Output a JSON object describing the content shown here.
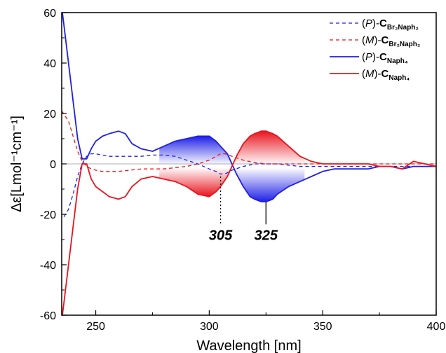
{
  "chart_data": {
    "type": "line",
    "title": "",
    "xlabel": "Wavelength [nm]",
    "ylabel": "Δε[Lmol⁻¹cm⁻¹]",
    "xlim": [
      235,
      400
    ],
    "ylim": [
      -60,
      60
    ],
    "x_ticks": [
      250,
      300,
      350,
      400
    ],
    "y_ticks": [
      -60,
      -40,
      -20,
      0,
      20,
      40,
      60
    ],
    "grid": false,
    "zero_line": true,
    "legend_position": "top-right",
    "colors": {
      "blue": "#1f1fe6",
      "red": "#e8141e"
    },
    "series": [
      {
        "name_parts": [
          "(",
          "P",
          ")-",
          "C",
          "Br2Naph2"
        ],
        "legend_text": {
          "paren_open": "(",
          "chirality": "P",
          "paren_close": ")-",
          "c": "C",
          "sub": "Br₂Naph₂"
        },
        "color": "#1f1fe6",
        "style": "dashed",
        "x": [
          236,
          238,
          240,
          242,
          244,
          246,
          248,
          250,
          253,
          256,
          260,
          265,
          270,
          275,
          280,
          285,
          290,
          295,
          300,
          303,
          305,
          307,
          310,
          315,
          320,
          325,
          330,
          335,
          340,
          345,
          350,
          360,
          370,
          380,
          390,
          400
        ],
        "y": [
          -21,
          -18,
          -12,
          -5,
          0,
          3,
          4,
          4,
          3.5,
          3,
          3,
          3,
          3,
          3.5,
          3.5,
          3,
          1.5,
          0,
          -2,
          -3,
          -4,
          -4,
          -2.5,
          -1,
          0,
          0,
          0,
          -0.5,
          -1,
          -1,
          -1,
          -1,
          -1,
          -1,
          -1,
          -1
        ]
      },
      {
        "name_parts": [
          "(",
          "M",
          ")-",
          "C",
          "Br2Naph2"
        ],
        "legend_text": {
          "paren_open": "(",
          "chirality": "M",
          "paren_close": ")-",
          "c": "C",
          "sub": "Br₂Naph₂"
        },
        "color": "#e8141e",
        "style": "dashed",
        "x": [
          235,
          238,
          240,
          242,
          244,
          246,
          248,
          250,
          253,
          256,
          260,
          265,
          270,
          275,
          280,
          285,
          290,
          295,
          300,
          303,
          305,
          307,
          310,
          315,
          320,
          325,
          330,
          335,
          340,
          345,
          350,
          360,
          370,
          380,
          390,
          400
        ],
        "y": [
          21,
          17,
          11,
          5,
          1,
          -1,
          -2,
          -2.5,
          -3,
          -3,
          -3,
          -2.5,
          -2,
          -2,
          -2,
          -1.5,
          -1,
          0,
          1.5,
          3,
          4,
          4,
          3,
          1.5,
          0.5,
          0,
          0,
          0,
          0,
          0,
          0,
          0,
          0,
          0,
          0,
          0
        ]
      },
      {
        "name_parts": [
          "(",
          "P",
          ")-",
          "C",
          "Naph4"
        ],
        "legend_text": {
          "paren_open": "(",
          "chirality": "P",
          "paren_close": ")-",
          "c": "C",
          "sub": "Naph₄"
        },
        "color": "#1f1fe6",
        "style": "solid",
        "x": [
          235,
          236,
          238,
          240,
          242,
          244,
          246,
          248,
          250,
          253,
          256,
          260,
          263,
          266,
          270,
          275,
          280,
          285,
          290,
          295,
          300,
          303,
          305,
          308,
          310,
          312,
          315,
          318,
          320,
          323,
          325,
          328,
          330,
          335,
          340,
          345,
          350,
          355,
          360,
          365,
          370,
          375,
          380,
          385,
          390,
          395,
          400
        ],
        "y": [
          62,
          55,
          40,
          25,
          10,
          2,
          2,
          6,
          9,
          11,
          12,
          13,
          12,
          8,
          6,
          5,
          7,
          9,
          10,
          11,
          11,
          9,
          7,
          4,
          0,
          -4,
          -9,
          -13,
          -14,
          -15,
          -15,
          -14,
          -12,
          -9,
          -7,
          -5,
          -3,
          -2,
          -2,
          -2,
          -2,
          -1,
          -1,
          -2,
          -1,
          -1,
          -1
        ]
      },
      {
        "name_parts": [
          "(",
          "M",
          ")-",
          "C",
          "Naph4"
        ],
        "legend_text": {
          "paren_open": "(",
          "chirality": "M",
          "paren_close": ")-",
          "c": "C",
          "sub": "Naph₄"
        },
        "color": "#e8141e",
        "style": "solid",
        "x": [
          235,
          236,
          238,
          240,
          242,
          244,
          246,
          248,
          250,
          253,
          256,
          260,
          263,
          266,
          270,
          275,
          280,
          285,
          290,
          295,
          300,
          303,
          305,
          308,
          310,
          312,
          315,
          318,
          320,
          323,
          325,
          328,
          330,
          335,
          340,
          345,
          350,
          355,
          360,
          365,
          370,
          375,
          380,
          385,
          390,
          395,
          400
        ],
        "y": [
          -62,
          -55,
          -40,
          -25,
          -10,
          0,
          0,
          -6,
          -9,
          -11,
          -13,
          -14,
          -13,
          -9,
          -6,
          -5,
          -6,
          -7,
          -9,
          -12,
          -13,
          -11,
          -9,
          -5,
          -1,
          3,
          8,
          11,
          12,
          13,
          13,
          12,
          11,
          7,
          3,
          1,
          0,
          0,
          0,
          0,
          0,
          -1,
          -1,
          -2,
          1,
          0,
          -1
        ]
      }
    ],
    "annotations": [
      {
        "text": "305",
        "x": 305,
        "y_from": -5,
        "y_to": -24,
        "line_style": "dotted"
      },
      {
        "text": "325",
        "x": 325,
        "y_from": -15,
        "y_to": -24,
        "line_style": "solid"
      }
    ],
    "shaded_regions": [
      {
        "x_from": 278,
        "x_to": 310,
        "between": [
          "(P)-CNaph4",
          "(M)-CNaph4"
        ],
        "colors": [
          "#1f1fe6",
          "#e8141e"
        ]
      },
      {
        "x_from": 310,
        "x_to": 342,
        "between": [
          "(M)-CNaph4",
          "(P)-CNaph4"
        ],
        "colors": [
          "#e8141e",
          "#1f1fe6"
        ]
      }
    ]
  }
}
